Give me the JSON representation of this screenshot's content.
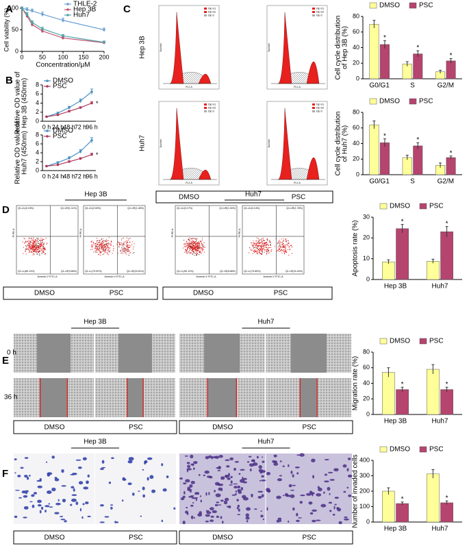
{
  "panel_labels": [
    "A",
    "B",
    "C",
    "D",
    "E",
    "F"
  ],
  "flow_cycle": {
    "rows": [
      "Hep 3B",
      "Huh7"
    ],
    "columns": [
      "DMSO",
      "PSC"
    ],
    "x_label": "FL2-A",
    "y_label": "Number",
    "legend": [
      "Dip G1",
      "Dip G2",
      "Dip S"
    ]
  },
  "apoptosis": {
    "groups": [
      "Hep 3B",
      "Huh7"
    ],
    "columns": [
      "DMSO",
      "PSC"
    ],
    "x_label": "Annexin V FITC-A",
    "y_label": "PI PE-A",
    "quadrants": [
      [
        "Q1-UL(0.15%)",
        "Q1-UR(1.11%)",
        "Q1-LL(89.13%)",
        "Q1-LR(9.66%)"
      ],
      [
        "Q1-UL(0.00%)",
        "Q1-UR(1.48%)",
        "Q1-LL(73.92%)",
        "Q1-LR(24.51%)"
      ],
      [
        "Q1-UL(0.17%)",
        "Q1-UR(1.04%)",
        "Q1-LL(90.12%)",
        "Q1-LR(8.68%)"
      ],
      [
        "Q1-UL(0.14%)",
        "Q1-UR(1.78%)",
        "Q1-LL(73.65%)",
        "Q1-LR(24.44%)"
      ]
    ]
  },
  "migration": {
    "groups": [
      "Hep 3B",
      "Huh7"
    ],
    "rows": [
      "0 h",
      "36 h"
    ],
    "columns": [
      "DMSO",
      "PSC"
    ]
  },
  "invasion": {
    "groups": [
      "Hep 3B",
      "Huh7"
    ],
    "columns": [
      "DMSO",
      "PSC"
    ]
  },
  "chart_data": [
    {
      "type": "line",
      "x": [
        0,
        12.5,
        25,
        50,
        100,
        200
      ],
      "xlim": [
        0,
        200
      ],
      "xticks": [
        0,
        50,
        100,
        150,
        200
      ],
      "ylim": [
        0,
        100
      ],
      "yticks": [
        0,
        50,
        100
      ],
      "xlabel": "Concentration/μM",
      "ylabel": "Cell viability (%)",
      "legend": "upper right",
      "series": [
        {
          "name": "THLE-2",
          "color": "#6a9fd4",
          "values": [
            100,
            97,
            94,
            86,
            72,
            50
          ],
          "errors": [
            3,
            4,
            4,
            5,
            5,
            4
          ]
        },
        {
          "name": "Hep 3B",
          "color": "#c0506e",
          "values": [
            100,
            82,
            62,
            47,
            31,
            20
          ],
          "errors": [
            3,
            4,
            4,
            4,
            3,
            3
          ]
        },
        {
          "name": "Huh7",
          "color": "#4fa3a5",
          "values": [
            100,
            86,
            67,
            52,
            36,
            21
          ],
          "errors": [
            3,
            4,
            4,
            4,
            3,
            3
          ]
        }
      ]
    },
    {
      "type": "line",
      "categories": [
        "0 h",
        "24 h",
        "48 h",
        "72 h",
        "96 h"
      ],
      "ylim": [
        0,
        8
      ],
      "yticks": [
        0,
        2,
        4,
        6,
        8
      ],
      "ylabel": [
        "Relative OD value of",
        "Hep 3B (450nm)"
      ],
      "legend": "upper left",
      "series": [
        {
          "name": "DMSO",
          "color": "#4a90c2",
          "values": [
            1,
            1.8,
            3,
            4.5,
            6.5
          ],
          "errors": [
            0.1,
            0.2,
            0.3,
            0.4,
            0.6
          ]
        },
        {
          "name": "PSC",
          "color": "#b03a5b",
          "values": [
            1,
            1.4,
            2.2,
            3,
            4
          ],
          "errors": [
            0.1,
            0.1,
            0.2,
            0.2,
            0.3
          ],
          "sig": [
            null,
            null,
            null,
            null,
            "*"
          ]
        }
      ]
    },
    {
      "type": "line",
      "categories": [
        "0 h",
        "24 h",
        "48 h",
        "72 h",
        "96 h"
      ],
      "ylim": [
        0,
        8
      ],
      "yticks": [
        0,
        2,
        4,
        6,
        8
      ],
      "ylabel": [
        "Relative OD value of",
        "Huh7 (450nm)"
      ],
      "legend": "upper left",
      "series": [
        {
          "name": "DMSO",
          "color": "#4a90c2",
          "values": [
            1,
            1.8,
            2.8,
            4.3,
            6.8
          ],
          "errors": [
            0.1,
            0.2,
            0.3,
            0.4,
            0.6
          ]
        },
        {
          "name": "PSC",
          "color": "#b03a5b",
          "values": [
            1,
            1.3,
            2,
            2.7,
            3.6
          ],
          "errors": [
            0.1,
            0.1,
            0.2,
            0.2,
            0.3
          ],
          "sig": [
            null,
            null,
            null,
            null,
            "*"
          ]
        }
      ]
    },
    {
      "type": "bar",
      "categories": [
        "G0/G1",
        "S",
        "G2/M"
      ],
      "ylim": [
        0,
        80
      ],
      "yticks": [
        0,
        20,
        40,
        60,
        80
      ],
      "ylabel": [
        "Cell cycle distribution",
        "of Hep 3B (%)"
      ],
      "series": [
        {
          "name": "DMSO",
          "color": "#ffff99",
          "values": [
            70,
            19,
            9
          ],
          "errors": [
            5,
            3,
            2
          ]
        },
        {
          "name": "PSC",
          "color": "#b5446e",
          "values": [
            44,
            32,
            23
          ],
          "errors": [
            5,
            4,
            3
          ],
          "sig": [
            "*",
            "*",
            "*"
          ]
        }
      ]
    },
    {
      "type": "bar",
      "categories": [
        "G0/G1",
        "S",
        "G2/M"
      ],
      "ylim": [
        0,
        80
      ],
      "yticks": [
        0,
        20,
        40,
        60,
        80
      ],
      "ylabel": [
        "Cell cycle distribution",
        "of Huh7 (%)"
      ],
      "series": [
        {
          "name": "DMSO",
          "color": "#ffff99",
          "values": [
            64,
            22,
            12
          ],
          "errors": [
            5,
            3,
            3
          ]
        },
        {
          "name": "PSC",
          "color": "#b5446e",
          "values": [
            41,
            37,
            22
          ],
          "errors": [
            5,
            4,
            2
          ],
          "sig": [
            "*",
            "*",
            "*"
          ]
        }
      ]
    },
    {
      "type": "bar",
      "categories": [
        "Hep 3B",
        "Huh7"
      ],
      "ylim": [
        0,
        30
      ],
      "yticks": [
        0,
        10,
        20,
        30
      ],
      "ylabel": "Apoptosis rate (%)",
      "series": [
        {
          "name": "DMSO",
          "color": "#ffff99",
          "values": [
            8.5,
            8.8
          ],
          "errors": [
            1,
            1
          ]
        },
        {
          "name": "PSC",
          "color": "#b5446e",
          "values": [
            24.5,
            23
          ],
          "errors": [
            2,
            2.5
          ],
          "sig": [
            "*",
            "*"
          ]
        }
      ]
    },
    {
      "type": "bar",
      "categories": [
        "Hep 3B",
        "Huh7"
      ],
      "ylim": [
        0,
        80
      ],
      "yticks": [
        0,
        20,
        40,
        60,
        80
      ],
      "ylabel": "Migration rate (%)",
      "series": [
        {
          "name": "DMSO",
          "color": "#ffff99",
          "values": [
            54,
            58
          ],
          "errors": [
            6,
            6
          ]
        },
        {
          "name": "PSC",
          "color": "#b5446e",
          "values": [
            32,
            32
          ],
          "errors": [
            3,
            3
          ],
          "sig": [
            "*",
            "*"
          ]
        }
      ]
    },
    {
      "type": "bar",
      "categories": [
        "Hep 3B",
        "Huh7"
      ],
      "ylim": [
        0,
        400
      ],
      "yticks": [
        0,
        100,
        200,
        300,
        400
      ],
      "ylabel": "Number of invaded cells",
      "series": [
        {
          "name": "DMSO",
          "color": "#ffff99",
          "values": [
            200,
            312
          ],
          "errors": [
            22,
            28
          ]
        },
        {
          "name": "PSC",
          "color": "#b5446e",
          "values": [
            120,
            125
          ],
          "errors": [
            10,
            12
          ],
          "sig": [
            "*",
            "*"
          ]
        }
      ]
    }
  ]
}
